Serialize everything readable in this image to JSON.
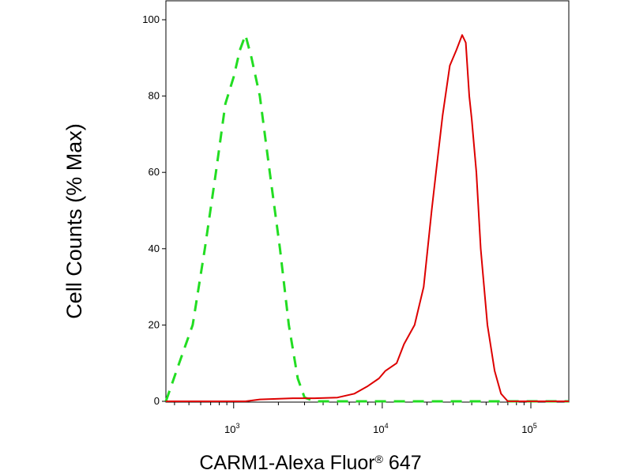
{
  "chart_data": {
    "type": "line",
    "xlabel": "CARM1-Alexa Fluor",
    "xlabel_mark": "®",
    "xlabel_suffix": " 647",
    "ylabel": "Cell Counts (% Max)",
    "xscale": "log",
    "xlim": [
      350,
      180000
    ],
    "ylim": [
      0,
      100
    ],
    "y_ticks": [
      0,
      20,
      40,
      60,
      80,
      100
    ],
    "x_ticks": [
      {
        "value": 1000,
        "base": "10",
        "exp": "3"
      },
      {
        "value": 10000,
        "base": "10",
        "exp": "4"
      },
      {
        "value": 100000,
        "base": "10",
        "exp": "5"
      }
    ],
    "grid": false,
    "legend": "none",
    "series": [
      {
        "color": "#22dd22",
        "style": "dashed",
        "points": [
          [
            350,
            0
          ],
          [
            430,
            10
          ],
          [
            530,
            20
          ],
          [
            640,
            40
          ],
          [
            760,
            60
          ],
          [
            880,
            78
          ],
          [
            1000,
            85
          ],
          [
            1100,
            92
          ],
          [
            1200,
            96
          ],
          [
            1320,
            90
          ],
          [
            1500,
            80
          ],
          [
            1750,
            60
          ],
          [
            2050,
            40
          ],
          [
            2350,
            20
          ],
          [
            2700,
            6
          ],
          [
            3000,
            1
          ],
          [
            3500,
            0
          ],
          [
            180000,
            0
          ]
        ]
      },
      {
        "color": "#dd0000",
        "style": "solid",
        "points": [
          [
            350,
            0
          ],
          [
            1200,
            0
          ],
          [
            1500,
            0.5
          ],
          [
            2500,
            0.8
          ],
          [
            3500,
            0.8
          ],
          [
            5000,
            1
          ],
          [
            6500,
            2
          ],
          [
            8000,
            4
          ],
          [
            9500,
            6
          ],
          [
            10500,
            8
          ],
          [
            12500,
            10
          ],
          [
            14000,
            15
          ],
          [
            16500,
            20
          ],
          [
            19000,
            30
          ],
          [
            21500,
            50
          ],
          [
            23000,
            60
          ],
          [
            25500,
            75
          ],
          [
            28500,
            88
          ],
          [
            31500,
            92
          ],
          [
            34500,
            96
          ],
          [
            36500,
            94
          ],
          [
            38500,
            80
          ],
          [
            40000,
            74
          ],
          [
            43000,
            60
          ],
          [
            46000,
            40
          ],
          [
            51000,
            20
          ],
          [
            57000,
            8
          ],
          [
            63000,
            2
          ],
          [
            70000,
            0
          ],
          [
            180000,
            0
          ]
        ]
      }
    ]
  }
}
